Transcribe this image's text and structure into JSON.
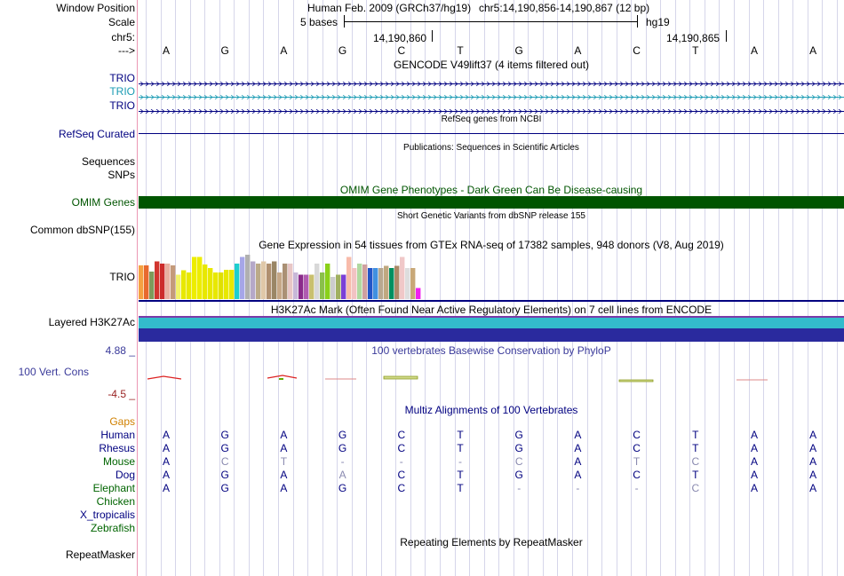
{
  "labels": {
    "window_position": "Window Position",
    "scale": "Scale",
    "chrom": "chr5:",
    "arrow": "--->",
    "trio1": "TRIO",
    "trio2": "TRIO",
    "trio3": "TRIO",
    "refseq": "RefSeq Curated",
    "sequences": "Sequences",
    "snps": "SNPs",
    "omim": "OMIM Genes",
    "dbsnp": "Common dbSNP(155)",
    "gtex": "TRIO",
    "h3k27ac": "Layered H3K27Ac",
    "phylop_max": "4.88 _",
    "phylop": "100 Vert. Cons",
    "phylop_min": "-4.5 _",
    "gaps": "Gaps",
    "species": [
      "Human",
      "Rhesus",
      "Mouse",
      "Dog",
      "Elephant",
      "Chicken",
      "X_tropicalis",
      "Zebrafish"
    ],
    "repeatmasker": "RepeatMasker"
  },
  "header": {
    "assembly": "Human Feb. 2009 (GRCh37/hg19)",
    "position": "chr5:14,190,856-14,190,867 (12 bp)",
    "scale_label": "5 bases",
    "scale_db": "hg19",
    "coord1": "14,190,860",
    "coord2": "14,190,865"
  },
  "bases": [
    "A",
    "G",
    "A",
    "G",
    "C",
    "T",
    "G",
    "A",
    "C",
    "T",
    "A",
    "A"
  ],
  "track_titles": {
    "gencode": "GENCODE V49lift37 (4 items filtered out)",
    "refseq": "RefSeq genes from NCBI",
    "publications": "Publications: Sequences in Scientific Articles",
    "omim": "OMIM Gene Phenotypes - Dark Green Can Be Disease-causing",
    "dbsnp": "Short Genetic Variants from dbSNP release 155",
    "gtex": "Gene Expression in 54 tissues from GTEx RNA-seq of 17382 samples, 948 donors (V8, Aug 2019)",
    "h3k27ac": "H3K27Ac Mark (Often Found Near Active Regulatory Elements) on 7 cell lines from ENCODE",
    "cons": "100 vertebrates Basewise Conservation by PhyloP",
    "multiz": "Multiz Alignments of 100 Vertebrates",
    "rmsk": "Repeating Elements by RepeatMasker"
  },
  "alignment": {
    "Human": [
      "A",
      "G",
      "A",
      "G",
      "C",
      "T",
      "G",
      "A",
      "C",
      "T",
      "A",
      "A"
    ],
    "Rhesus": [
      "A",
      "G",
      "A",
      "G",
      "C",
      "T",
      "G",
      "A",
      "C",
      "T",
      "A",
      "A"
    ],
    "Mouse": [
      "A",
      "C",
      "T",
      "-",
      "-",
      "-",
      "C",
      "A",
      "T",
      "C",
      "A",
      "A"
    ],
    "Dog": [
      "A",
      "G",
      "A",
      "A",
      "C",
      "T",
      "G",
      "A",
      "C",
      "T",
      "A",
      "A"
    ],
    "Elephant": [
      "A",
      "G",
      "A",
      "G",
      "C",
      "T",
      "-",
      "-",
      "-",
      "C",
      "A",
      "A"
    ]
  },
  "colors": {
    "label_blue": "#000080",
    "gencode_alt": "#1a9bb3",
    "omim_green": "#005500",
    "h3k27ac_cyan": "#33bbcc",
    "h3k27ac_navy": "#2a2a9e",
    "gaps_orange": "#d08000",
    "green_label": "#006400",
    "phylop_max_color": "#3a3a9a",
    "phylop_min_color": "#992222"
  },
  "gtex_bars": [
    {
      "color": "#f5a142",
      "value": 0.76
    },
    {
      "color": "#e8692e",
      "value": 0.76
    },
    {
      "color": "#7d9b5b",
      "value": 0.62
    },
    {
      "color": "#d1352f",
      "value": 0.85
    },
    {
      "color": "#cc2b2b",
      "value": 0.8
    },
    {
      "color": "#e8b0a0",
      "value": 0.8
    },
    {
      "color": "#c49a7a",
      "value": 0.76
    },
    {
      "color": "#f2f26b",
      "value": 0.55
    },
    {
      "color": "#e8e800",
      "value": 0.65
    },
    {
      "color": "#e8e800",
      "value": 0.6
    },
    {
      "color": "#eded00",
      "value": 0.95
    },
    {
      "color": "#eded00",
      "value": 0.95
    },
    {
      "color": "#e8e800",
      "value": 0.78
    },
    {
      "color": "#e8e800",
      "value": 0.7
    },
    {
      "color": "#e8e800",
      "value": 0.6
    },
    {
      "color": "#e0e000",
      "value": 0.6
    },
    {
      "color": "#e8e800",
      "value": 0.66
    },
    {
      "color": "#e8e800",
      "value": 0.66
    },
    {
      "color": "#1ecece",
      "value": 0.8
    },
    {
      "color": "#a6a6e8",
      "value": 0.95
    },
    {
      "color": "#b0b0b0",
      "value": 1.0
    },
    {
      "color": "#b5a8c8",
      "value": 0.85
    },
    {
      "color": "#bbaa88",
      "value": 0.8
    },
    {
      "color": "#e0c8a8",
      "value": 0.85
    },
    {
      "color": "#b09070",
      "value": 0.8
    },
    {
      "color": "#9a8666",
      "value": 0.85
    },
    {
      "color": "#c6a888",
      "value": 0.6
    },
    {
      "color": "#aa9074",
      "value": 0.8
    },
    {
      "color": "#e8c6c6",
      "value": 0.8
    },
    {
      "color": "#c8b8d8",
      "value": 0.6
    },
    {
      "color": "#8a2b8a",
      "value": 0.55
    },
    {
      "color": "#b05bb0",
      "value": 0.55
    },
    {
      "color": "#c9c06e",
      "value": 0.55
    },
    {
      "color": "#d8d8d8",
      "value": 0.8
    },
    {
      "color": "#8ac04a",
      "value": 0.6
    },
    {
      "color": "#8ad01a",
      "value": 0.8
    },
    {
      "color": "#cccccc",
      "value": 0.5
    },
    {
      "color": "#a0b060",
      "value": 0.55
    },
    {
      "color": "#7b3fd6",
      "value": 0.55
    },
    {
      "color": "#f8bbaa",
      "value": 0.95
    },
    {
      "color": "#f2c3c3",
      "value": 0.7
    },
    {
      "color": "#b0d8a0",
      "value": 0.8
    },
    {
      "color": "#d0a0a0",
      "value": 0.78
    },
    {
      "color": "#2255c8",
      "value": 0.7
    },
    {
      "color": "#4090e0",
      "value": 0.7
    },
    {
      "color": "#b8a890",
      "value": 0.7
    },
    {
      "color": "#c0a880",
      "value": 0.75
    },
    {
      "color": "#009060",
      "value": 0.7
    },
    {
      "color": "#aa8866",
      "value": 0.75
    },
    {
      "color": "#f0c8c8",
      "value": 0.95
    },
    {
      "color": "#dddddd",
      "value": 0.7
    },
    {
      "color": "#c8a878",
      "value": 0.7
    },
    {
      "color": "#f020f0",
      "value": 0.25
    }
  ]
}
